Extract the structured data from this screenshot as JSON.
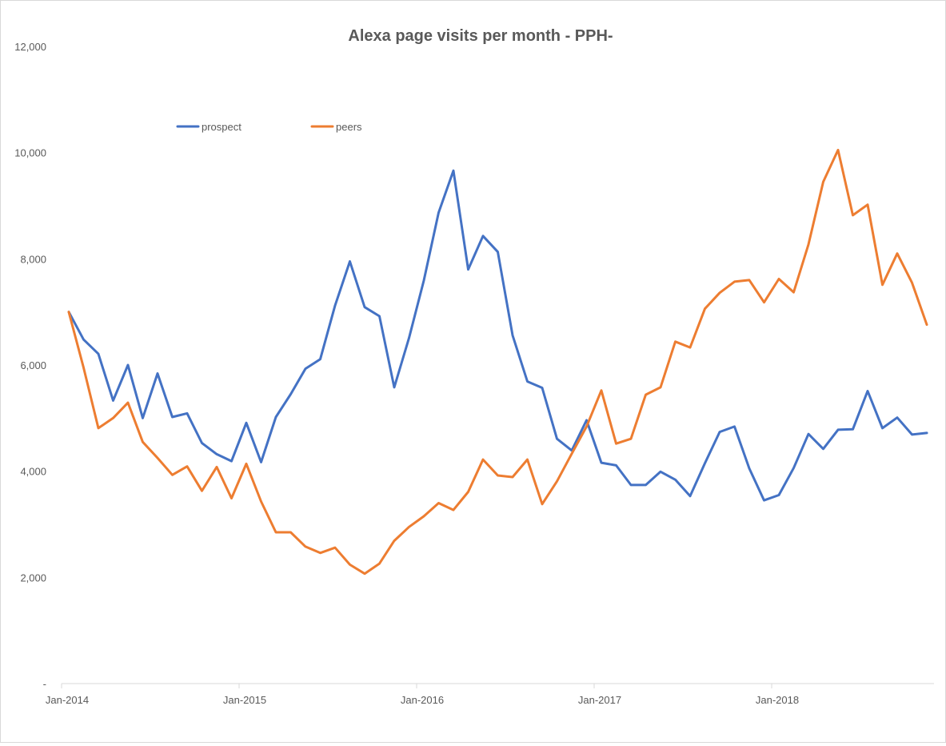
{
  "chart_data": {
    "type": "line",
    "title": "Alexa page visits per month - PPH-",
    "xlabel": "",
    "ylabel": "",
    "x_start": "2014-01",
    "x_tick_labels": [
      "Jan-2014",
      "Jan-2015",
      "Jan-2016",
      "Jan-2017",
      "Jan-2018"
    ],
    "y_tick_labels": [
      "-",
      "2,000",
      "4,000",
      "6,000",
      "8,000",
      "10,000",
      "12,000"
    ],
    "ylim": [
      0,
      12000
    ],
    "grid": false,
    "legend_position": "top-left",
    "series": [
      {
        "name": "prospect",
        "color": "#4472c4",
        "values": [
          7000,
          6480,
          6210,
          5330,
          6000,
          5000,
          5840,
          5020,
          5090,
          4530,
          4320,
          4190,
          4910,
          4170,
          5020,
          5450,
          5930,
          6110,
          7120,
          7950,
          7090,
          6920,
          5580,
          6510,
          7590,
          8870,
          9660,
          7800,
          8430,
          8130,
          6560,
          5690,
          5570,
          4610,
          4390,
          4960,
          4160,
          4110,
          3740,
          3740,
          3990,
          3840,
          3530,
          4150,
          4740,
          4840,
          4050,
          3450,
          3550,
          4060,
          4700,
          4420,
          4780,
          4790,
          5510,
          4810,
          5010,
          4690,
          4720
        ]
      },
      {
        "name": "peers",
        "color": "#ed7d31",
        "values": [
          7000,
          5950,
          4810,
          5000,
          5290,
          4550,
          4250,
          3930,
          4090,
          3630,
          4080,
          3490,
          4140,
          3430,
          2850,
          2850,
          2580,
          2460,
          2560,
          2240,
          2070,
          2260,
          2690,
          2950,
          3150,
          3400,
          3270,
          3610,
          4220,
          3920,
          3890,
          4220,
          3380,
          3810,
          4330,
          4840,
          5520,
          4520,
          4610,
          5440,
          5580,
          6440,
          6330,
          7060,
          7360,
          7570,
          7600,
          7180,
          7620,
          7370,
          8270,
          9450,
          10050,
          8820,
          9020,
          7510,
          8100,
          7550,
          6760
        ]
      }
    ]
  }
}
